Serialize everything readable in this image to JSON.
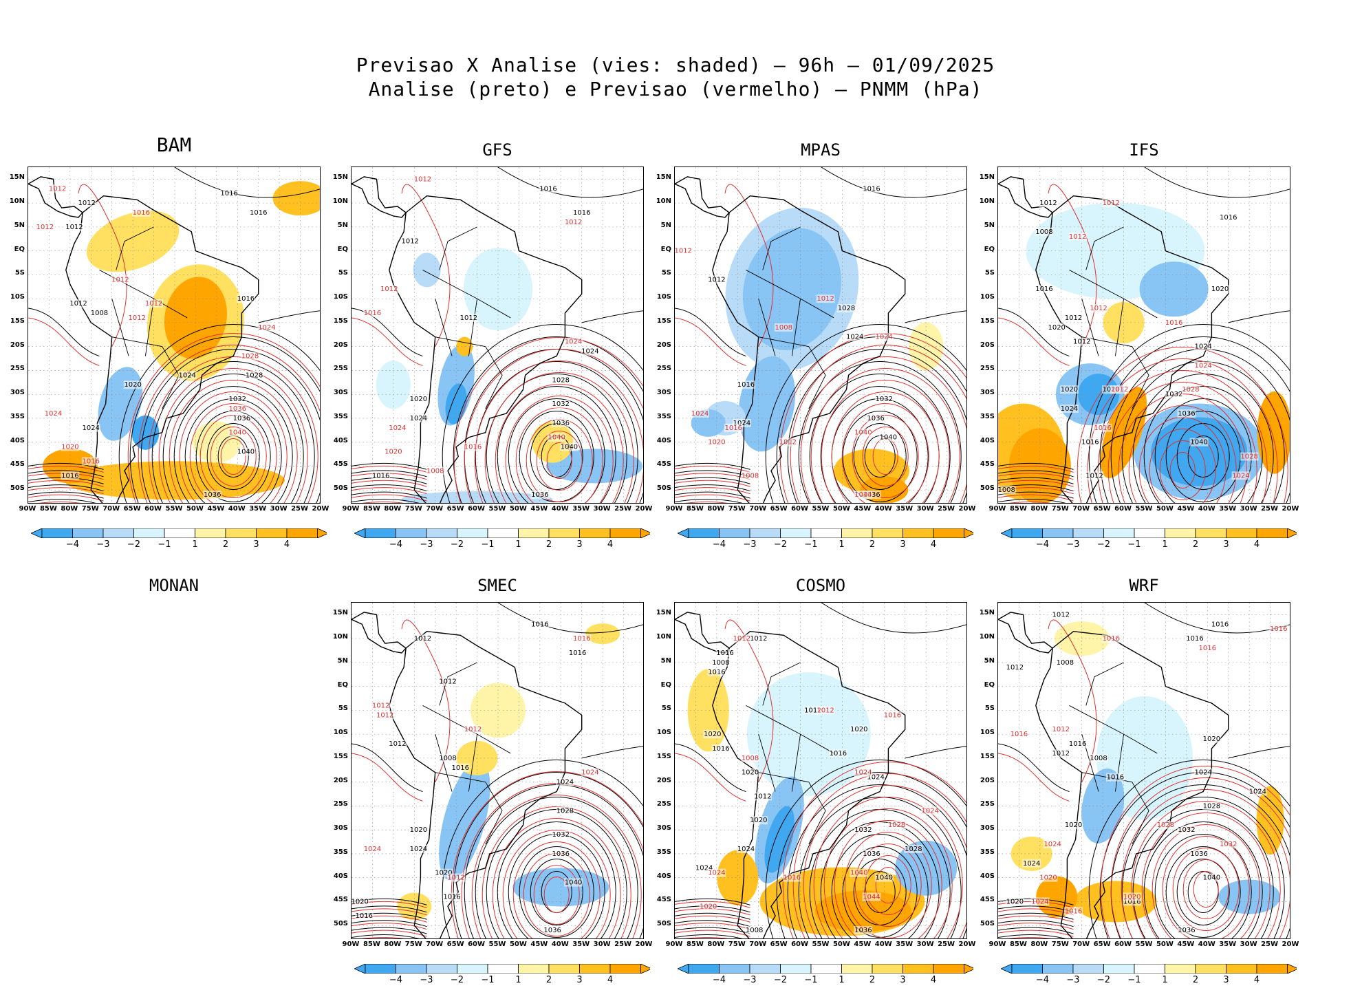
{
  "title": {
    "line1": "Previsao X Analise (vies: shaded) — 96h — 01/09/2025",
    "line2": "Analise (preto) e Previsao (vermelho) — PNMM (hPa)"
  },
  "axes": {
    "lat_labels": [
      "15N",
      "10N",
      "5N",
      "EQ",
      "5S",
      "10S",
      "15S",
      "20S",
      "25S",
      "30S",
      "35S",
      "40S",
      "45S",
      "50S"
    ],
    "lon_labels": [
      "90W",
      "85W",
      "80W",
      "75W",
      "70W",
      "65W",
      "60W",
      "55W",
      "50W",
      "45W",
      "40W",
      "35W",
      "30W",
      "25W",
      "20W"
    ]
  },
  "colorbar": {
    "labels": [
      "−4",
      "−3",
      "−2",
      "−1",
      "1",
      "2",
      "3",
      "4"
    ],
    "colors": [
      "#40a8f0",
      "#88c4f4",
      "#b8dcf8",
      "#d8f4fc",
      "#ffffff",
      "#fff4a8",
      "#ffe060",
      "#ffc020",
      "#ffa500"
    ]
  },
  "colors": {
    "analysis_contour": "#000000",
    "forecast_contour": "#e03030",
    "land_neutral": "#ffffff"
  },
  "panels": [
    {
      "name": "BAM",
      "has_map": true,
      "bias": "warm-north",
      "labels_black": [
        {
          "t": "1016",
          "lon": -42,
          "lat": 12
        },
        {
          "t": "1016",
          "lon": -35,
          "lat": 8
        },
        {
          "t": "1012",
          "lon": -76,
          "lat": 10
        },
        {
          "t": "1012",
          "lon": -79,
          "lat": 5
        },
        {
          "t": "1008",
          "lon": -73,
          "lat": -13
        },
        {
          "t": "1012",
          "lon": -78,
          "lat": -11
        },
        {
          "t": "1020",
          "lon": -65,
          "lat": -28
        },
        {
          "t": "1024",
          "lon": -75,
          "lat": -37
        },
        {
          "t": "1024",
          "lon": -52,
          "lat": -26
        },
        {
          "t": "1028",
          "lon": -36,
          "lat": -26
        },
        {
          "t": "1032",
          "lon": -40,
          "lat": -31
        },
        {
          "t": "1036",
          "lon": -39,
          "lat": -35
        },
        {
          "t": "1040",
          "lon": -38,
          "lat": -42
        },
        {
          "t": "1016",
          "lon": -80,
          "lat": -47
        },
        {
          "t": "1036",
          "lon": -46,
          "lat": -51
        },
        {
          "t": "1016",
          "lon": -38,
          "lat": -10
        }
      ],
      "labels_red": [
        {
          "t": "1012",
          "lon": -83,
          "lat": 13
        },
        {
          "t": "1016",
          "lon": -63,
          "lat": 8
        },
        {
          "t": "1012",
          "lon": -86,
          "lat": 5
        },
        {
          "t": "1012",
          "lon": -68,
          "lat": -6
        },
        {
          "t": "1012",
          "lon": -60,
          "lat": -11
        },
        {
          "t": "1012",
          "lon": -64,
          "lat": -14
        },
        {
          "t": "1024",
          "lon": -33,
          "lat": -16
        },
        {
          "t": "1028",
          "lon": -37,
          "lat": -22
        },
        {
          "t": "1036",
          "lon": -40,
          "lat": -33
        },
        {
          "t": "1040",
          "lon": -40,
          "lat": -38
        },
        {
          "t": "1024",
          "lon": -84,
          "lat": -34
        },
        {
          "t": "1020",
          "lon": -80,
          "lat": -41
        },
        {
          "t": "1016",
          "lon": -75,
          "lat": -44
        }
      ]
    },
    {
      "name": "GFS",
      "has_map": true,
      "bias": "mixed",
      "labels_black": [
        {
          "t": "1016",
          "lon": -43,
          "lat": 13
        },
        {
          "t": "1016",
          "lon": -35,
          "lat": 8
        },
        {
          "t": "1012",
          "lon": -76,
          "lat": 2
        },
        {
          "t": "1012",
          "lon": -62,
          "lat": -14
        },
        {
          "t": "1024",
          "lon": -33,
          "lat": -21
        },
        {
          "t": "1028",
          "lon": -40,
          "lat": -27
        },
        {
          "t": "1032",
          "lon": -40,
          "lat": -32
        },
        {
          "t": "1036",
          "lon": -40,
          "lat": -36
        },
        {
          "t": "1040",
          "lon": -38,
          "lat": -41
        },
        {
          "t": "1016",
          "lon": -83,
          "lat": -47
        },
        {
          "t": "1020",
          "lon": -74,
          "lat": -31
        },
        {
          "t": "1024",
          "lon": -74,
          "lat": -35
        },
        {
          "t": "1036",
          "lon": -45,
          "lat": -51
        }
      ],
      "labels_red": [
        {
          "t": "1012",
          "lon": -73,
          "lat": 15
        },
        {
          "t": "1012",
          "lon": -37,
          "lat": 6
        },
        {
          "t": "1012",
          "lon": -81,
          "lat": -8
        },
        {
          "t": "1016",
          "lon": -85,
          "lat": -13
        },
        {
          "t": "1024",
          "lon": -37,
          "lat": -19
        },
        {
          "t": "1040",
          "lon": -41,
          "lat": -39
        },
        {
          "t": "1024",
          "lon": -79,
          "lat": -37
        },
        {
          "t": "1020",
          "lon": -80,
          "lat": -42
        },
        {
          "t": "1016",
          "lon": -61,
          "lat": -41
        },
        {
          "t": "1008",
          "lon": -70,
          "lat": -46
        }
      ]
    },
    {
      "name": "MPAS",
      "has_map": true,
      "bias": "cold-continent",
      "labels_black": [
        {
          "t": "1016",
          "lon": -43,
          "lat": 13
        },
        {
          "t": "1012",
          "lon": -80,
          "lat": -6
        },
        {
          "t": "1016",
          "lon": -73,
          "lat": -28
        },
        {
          "t": "1028",
          "lon": -49,
          "lat": -12
        },
        {
          "t": "1024",
          "lon": -47,
          "lat": -18
        },
        {
          "t": "1032",
          "lon": -40,
          "lat": -31
        },
        {
          "t": "1036",
          "lon": -42,
          "lat": -35
        },
        {
          "t": "1040",
          "lon": -39,
          "lat": -39
        },
        {
          "t": "1024",
          "lon": -74,
          "lat": -36
        },
        {
          "t": "1036",
          "lon": -43,
          "lat": -51
        }
      ],
      "labels_red": [
        {
          "t": "1012",
          "lon": -88,
          "lat": 0
        },
        {
          "t": "1008",
          "lon": -64,
          "lat": -16
        },
        {
          "t": "1024",
          "lon": -40,
          "lat": -18
        },
        {
          "t": "1012",
          "lon": -54,
          "lat": -10
        },
        {
          "t": "1024",
          "lon": -84,
          "lat": -34
        },
        {
          "t": "1020",
          "lon": -80,
          "lat": -40
        },
        {
          "t": "1016",
          "lon": -76,
          "lat": -37
        },
        {
          "t": "1040",
          "lon": -45,
          "lat": -38
        },
        {
          "t": "1012",
          "lon": -63,
          "lat": -40
        },
        {
          "t": "1008",
          "lon": -72,
          "lat": -47
        },
        {
          "t": "1044",
          "lon": -45,
          "lat": -51
        }
      ]
    },
    {
      "name": "IFS",
      "has_map": true,
      "bias": "strong",
      "labels_black": [
        {
          "t": "1012",
          "lon": -78,
          "lat": 10
        },
        {
          "t": "1008",
          "lon": -79,
          "lat": 4
        },
        {
          "t": "1016",
          "lon": -35,
          "lat": 7
        },
        {
          "t": "1016",
          "lon": -79,
          "lat": -8
        },
        {
          "t": "1012",
          "lon": -72,
          "lat": -14
        },
        {
          "t": "1020",
          "lon": -76,
          "lat": -16
        },
        {
          "t": "1012",
          "lon": -70,
          "lat": -19
        },
        {
          "t": "1020",
          "lon": -73,
          "lat": -29
        },
        {
          "t": "1020",
          "lon": -63,
          "lat": -29
        },
        {
          "t": "1024",
          "lon": -73,
          "lat": -33
        },
        {
          "t": "1016",
          "lon": -68,
          "lat": -40
        },
        {
          "t": "1012",
          "lon": -67,
          "lat": -47
        },
        {
          "t": "1024",
          "lon": -41,
          "lat": -20
        },
        {
          "t": "1032",
          "lon": -48,
          "lat": -30
        },
        {
          "t": "1036",
          "lon": -45,
          "lat": -34
        },
        {
          "t": "1040",
          "lon": -42,
          "lat": -40
        },
        {
          "t": "1008",
          "lon": -88,
          "lat": -50
        },
        {
          "t": "1020",
          "lon": -37,
          "lat": -8
        }
      ],
      "labels_red": [
        {
          "t": "1012",
          "lon": -63,
          "lat": 10
        },
        {
          "t": "1012",
          "lon": -71,
          "lat": 3
        },
        {
          "t": "1012",
          "lon": -66,
          "lat": -12
        },
        {
          "t": "1012",
          "lon": -61,
          "lat": -29
        },
        {
          "t": "1016",
          "lon": -65,
          "lat": -37
        },
        {
          "t": "1024",
          "lon": -41,
          "lat": -24
        },
        {
          "t": "1028",
          "lon": -44,
          "lat": -29
        },
        {
          "t": "1028",
          "lon": -30,
          "lat": -43
        },
        {
          "t": "1024",
          "lon": -32,
          "lat": -47
        },
        {
          "t": "1016",
          "lon": -48,
          "lat": -15
        }
      ]
    },
    {
      "name": "MONAN",
      "has_map": false,
      "bias": "none",
      "labels_black": [],
      "labels_red": []
    },
    {
      "name": "SMEC",
      "has_map": true,
      "bias": "mixed-weak",
      "labels_black": [
        {
          "t": "1016",
          "lon": -45,
          "lat": 13
        },
        {
          "t": "1016",
          "lon": -36,
          "lat": 7
        },
        {
          "t": "1012",
          "lon": -73,
          "lat": 10
        },
        {
          "t": "1012",
          "lon": -67,
          "lat": 1
        },
        {
          "t": "1012",
          "lon": -79,
          "lat": -12
        },
        {
          "t": "1008",
          "lon": -67,
          "lat": -15
        },
        {
          "t": "1016",
          "lon": -64,
          "lat": -17
        },
        {
          "t": "1024",
          "lon": -39,
          "lat": -20
        },
        {
          "t": "1028",
          "lon": -39,
          "lat": -26
        },
        {
          "t": "1032",
          "lon": -40,
          "lat": -31
        },
        {
          "t": "1036",
          "lon": -40,
          "lat": -35
        },
        {
          "t": "1040",
          "lon": -37,
          "lat": -41
        },
        {
          "t": "1020",
          "lon": -74,
          "lat": -30
        },
        {
          "t": "1024",
          "lon": -74,
          "lat": -34
        },
        {
          "t": "1020",
          "lon": -68,
          "lat": -39
        },
        {
          "t": "1016",
          "lon": -66,
          "lat": -44
        },
        {
          "t": "1020",
          "lon": -88,
          "lat": -45
        },
        {
          "t": "1016",
          "lon": -87,
          "lat": -48
        },
        {
          "t": "1036",
          "lon": -42,
          "lat": -51
        }
      ],
      "labels_red": [
        {
          "t": "1016",
          "lon": -35,
          "lat": 10
        },
        {
          "t": "1012",
          "lon": -83,
          "lat": -4
        },
        {
          "t": "1012",
          "lon": -82,
          "lat": -6
        },
        {
          "t": "1012",
          "lon": -61,
          "lat": -9
        },
        {
          "t": "1024",
          "lon": -33,
          "lat": -18
        },
        {
          "t": "1024",
          "lon": -85,
          "lat": -34
        },
        {
          "t": "1012",
          "lon": -65,
          "lat": -40
        }
      ]
    },
    {
      "name": "COSMO",
      "has_map": true,
      "bias": "cold-continent-warm-south",
      "labels_black": [
        {
          "t": "1012",
          "lon": -70,
          "lat": 10
        },
        {
          "t": "1016",
          "lon": -78,
          "lat": 7
        },
        {
          "t": "1008",
          "lon": -79,
          "lat": 5
        },
        {
          "t": "1016",
          "lon": -80,
          "lat": 3
        },
        {
          "t": "1012",
          "lon": -57,
          "lat": -5
        },
        {
          "t": "1020",
          "lon": -81,
          "lat": -10
        },
        {
          "t": "1016",
          "lon": -79,
          "lat": -13
        },
        {
          "t": "1020",
          "lon": -72,
          "lat": -18
        },
        {
          "t": "1012",
          "lon": -69,
          "lat": -23
        },
        {
          "t": "1020",
          "lon": -70,
          "lat": -28
        },
        {
          "t": "1024",
          "lon": -73,
          "lat": -34
        },
        {
          "t": "1016",
          "lon": -51,
          "lat": -14
        },
        {
          "t": "1020",
          "lon": -46,
          "lat": -9
        },
        {
          "t": "1024",
          "lon": -42,
          "lat": -19
        },
        {
          "t": "1032",
          "lon": -45,
          "lat": -30
        },
        {
          "t": "1036",
          "lon": -43,
          "lat": -35
        },
        {
          "t": "1040",
          "lon": -40,
          "lat": -40
        },
        {
          "t": "1028",
          "lon": -33,
          "lat": -34
        },
        {
          "t": "1024",
          "lon": -83,
          "lat": -38
        },
        {
          "t": "1008",
          "lon": -71,
          "lat": -51
        },
        {
          "t": "1036",
          "lon": -45,
          "lat": -51
        }
      ],
      "labels_red": [
        {
          "t": "1012",
          "lon": -74,
          "lat": 10
        },
        {
          "t": "1016",
          "lon": -38,
          "lat": -6
        },
        {
          "t": "1012",
          "lon": -54,
          "lat": -5
        },
        {
          "t": "1008",
          "lon": -72,
          "lat": -15
        },
        {
          "t": "1024",
          "lon": -45,
          "lat": -18
        },
        {
          "t": "1028",
          "lon": -37,
          "lat": -29
        },
        {
          "t": "1024",
          "lon": -29,
          "lat": -26
        },
        {
          "t": "1024",
          "lon": -80,
          "lat": -39
        },
        {
          "t": "1020",
          "lon": -82,
          "lat": -46
        },
        {
          "t": "1040",
          "lon": -46,
          "lat": -39
        },
        {
          "t": "1044",
          "lon": -43,
          "lat": -44
        },
        {
          "t": "1016",
          "lon": -62,
          "lat": -40
        }
      ]
    },
    {
      "name": "WRF",
      "has_map": true,
      "bias": "mixed-south",
      "labels_black": [
        {
          "t": "1012",
          "lon": -75,
          "lat": 15
        },
        {
          "t": "1016",
          "lon": -37,
          "lat": 13
        },
        {
          "t": "1016",
          "lon": -43,
          "lat": 10
        },
        {
          "t": "1012",
          "lon": -86,
          "lat": 4
        },
        {
          "t": "1008",
          "lon": -74,
          "lat": 5
        },
        {
          "t": "1016",
          "lon": -71,
          "lat": -12
        },
        {
          "t": "1012",
          "lon": -75,
          "lat": -14
        },
        {
          "t": "1008",
          "lon": -66,
          "lat": -15
        },
        {
          "t": "1016",
          "lon": -62,
          "lat": -19
        },
        {
          "t": "1024",
          "lon": -41,
          "lat": -18
        },
        {
          "t": "1028",
          "lon": -39,
          "lat": -25
        },
        {
          "t": "1032",
          "lon": -45,
          "lat": -30
        },
        {
          "t": "1036",
          "lon": -42,
          "lat": -35
        },
        {
          "t": "1040",
          "lon": -39,
          "lat": -40
        },
        {
          "t": "1024",
          "lon": -82,
          "lat": -37
        },
        {
          "t": "1020",
          "lon": -86,
          "lat": -45
        },
        {
          "t": "1024",
          "lon": -28,
          "lat": -22
        },
        {
          "t": "1036",
          "lon": -45,
          "lat": -51
        },
        {
          "t": "1020",
          "lon": -72,
          "lat": -29
        },
        {
          "t": "1016",
          "lon": -58,
          "lat": -45
        },
        {
          "t": "1020",
          "lon": -39,
          "lat": -11
        }
      ],
      "labels_red": [
        {
          "t": "1016",
          "lon": -63,
          "lat": 10
        },
        {
          "t": "1016",
          "lon": -40,
          "lat": 8
        },
        {
          "t": "1016",
          "lon": -23,
          "lat": 12
        },
        {
          "t": "1016",
          "lon": -85,
          "lat": -10
        },
        {
          "t": "1012",
          "lon": -75,
          "lat": -9
        },
        {
          "t": "1024",
          "lon": -77,
          "lat": -33
        },
        {
          "t": "1028",
          "lon": -50,
          "lat": -29
        },
        {
          "t": "1032",
          "lon": -35,
          "lat": -33
        },
        {
          "t": "1024",
          "lon": -80,
          "lat": -45
        },
        {
          "t": "1020",
          "lon": -78,
          "lat": -40
        },
        {
          "t": "1016",
          "lon": -72,
          "lat": -47
        },
        {
          "t": "1020",
          "lon": -58,
          "lat": -44
        }
      ]
    }
  ]
}
